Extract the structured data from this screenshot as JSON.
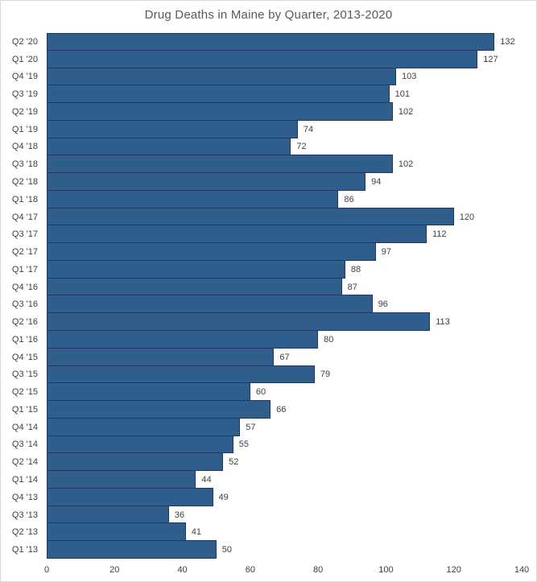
{
  "title": "Drug Deaths in Maine by Quarter, 2013-2020",
  "colors": {
    "bar_fill": "#2f5d8c",
    "bar_border": "#1f3864",
    "title_text": "#595959",
    "label_text": "#404040",
    "chart_border": "#d9d9d9",
    "background": "#ffffff"
  },
  "chart_data": {
    "type": "bar",
    "orientation": "horizontal",
    "title": "Drug Deaths in Maine by Quarter, 2013-2020",
    "categories": [
      "Q2 '20",
      "Q1 '20",
      "Q4 '19",
      "Q3 '19",
      "Q2 '19",
      "Q1 '19",
      "Q4 '18",
      "Q3 '18",
      "Q2 '18",
      "Q1 '18",
      "Q4 '17",
      "Q3 '17",
      "Q2 '17",
      "Q1 '17",
      "Q4 '16",
      "Q3 '16",
      "Q2 '16",
      "Q1 '16",
      "Q4 '15",
      "Q3 '15",
      "Q2 '15",
      "Q1 '15",
      "Q4 '14",
      "Q3 '14",
      "Q2 '14",
      "Q1 '14",
      "Q4 '13",
      "Q3 '13",
      "Q2 '13",
      "Q1 '13"
    ],
    "values": [
      132,
      127,
      103,
      101,
      102,
      74,
      72,
      102,
      94,
      86,
      120,
      112,
      97,
      88,
      87,
      96,
      113,
      80,
      67,
      79,
      60,
      66,
      57,
      55,
      52,
      44,
      49,
      36,
      41,
      50
    ],
    "xlabel": "",
    "ylabel": "",
    "xlim": [
      0,
      140
    ],
    "x_ticks": [
      0,
      20,
      40,
      60,
      80,
      100,
      120,
      140
    ],
    "data_labels": true,
    "gridlines": false,
    "legend": "none"
  }
}
